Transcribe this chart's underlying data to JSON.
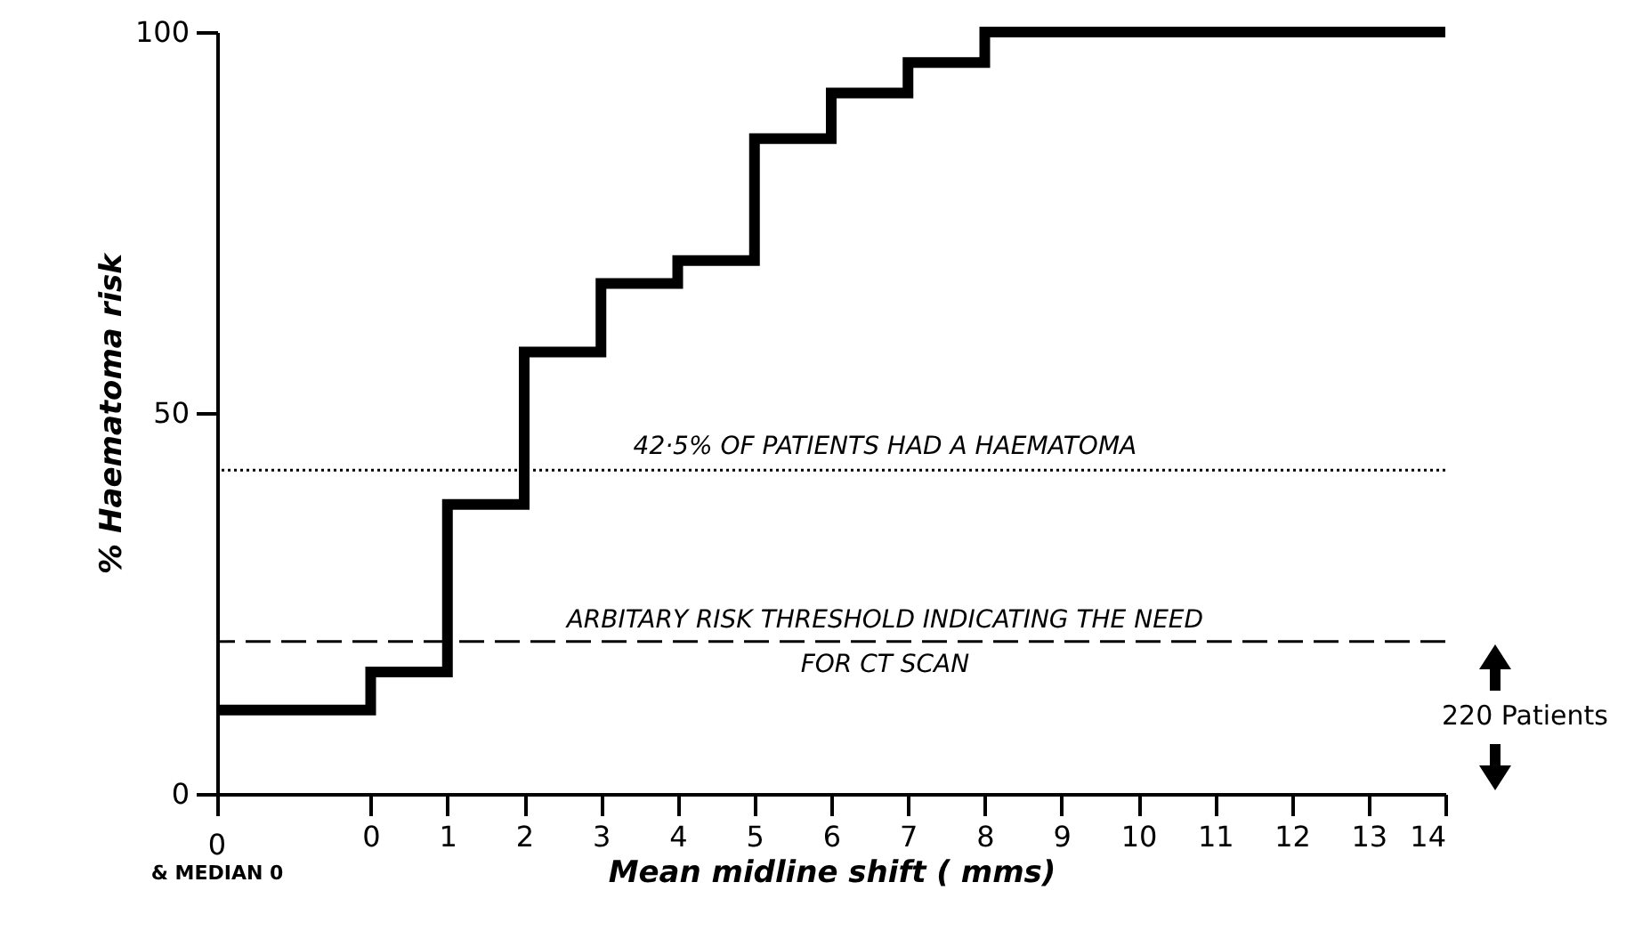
{
  "chart_data": {
    "type": "step",
    "xlabel": "Mean midline shift ( mms)",
    "ylabel": "% Haematoma risk",
    "x": [
      -2,
      0,
      1,
      2,
      3,
      4,
      5,
      6,
      7,
      8,
      14
    ],
    "series": [
      {
        "color": "#000000",
        "values": [
          11,
          16,
          38,
          58,
          67,
          70,
          86,
          92,
          96,
          100,
          100
        ]
      }
    ],
    "xlim": [
      -2,
      14
    ],
    "xticks": [
      {
        "value": -2,
        "label": null
      },
      0,
      1,
      2,
      3,
      4,
      5,
      6,
      7,
      8,
      9,
      10,
      11,
      12,
      13,
      14
    ],
    "ylim": [
      0,
      100
    ],
    "yticks": [
      0,
      50,
      100
    ],
    "ref_lines": [
      {
        "axis": "y",
        "value": 42.5,
        "label": "42·5% OF PATIENTS HAD A HAEMATOMA",
        "line_style": "dotted",
        "color": "#000000"
      },
      {
        "axis": "y",
        "value": 20,
        "label": "ARBITARY RISK THRESHOLD INDICATING THE NEED\nFOR CT SCAN",
        "line_style": "dashed",
        "color": "#000000"
      }
    ],
    "annotations": [
      "0\n& MEDIAN 0",
      "220 Patients"
    ]
  }
}
